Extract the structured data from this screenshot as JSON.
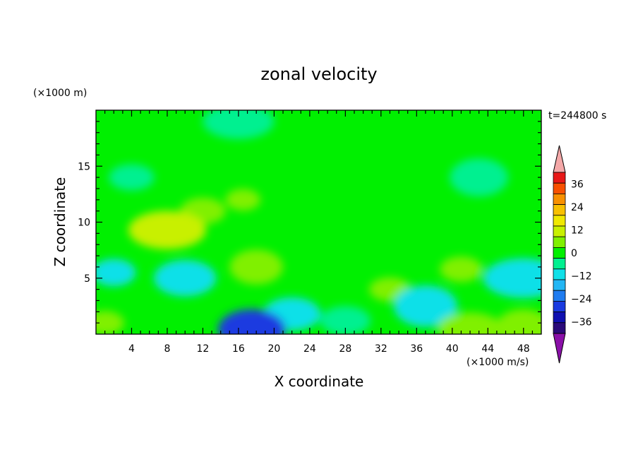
{
  "chart_data": {
    "type": "heatmap",
    "title": "zonal velocity",
    "xlabel": "X coordinate",
    "ylabel": "Z coordinate",
    "x_unit_note": "(×1000 m/s)",
    "y_unit_note": "(×1000 m)",
    "time_label": "t=244800 s",
    "xlim": [
      0,
      50
    ],
    "ylim": [
      0,
      20
    ],
    "x_ticks": [
      "4",
      "8",
      "12",
      "16",
      "20",
      "24",
      "28",
      "32",
      "36",
      "40",
      "44",
      "48"
    ],
    "y_ticks": [
      "5",
      "10",
      "15"
    ],
    "colorbar": {
      "levels": [
        -42,
        -36,
        -30,
        -24,
        -18,
        -12,
        -6,
        0,
        6,
        12,
        18,
        24,
        30,
        36,
        42
      ],
      "tick_labels": [
        "36",
        "24",
        "12",
        "0",
        "−12",
        "−24",
        "−36"
      ],
      "colors": [
        "#2a0a7a",
        "#1010b0",
        "#1a3ae0",
        "#1f7cf0",
        "#22b6f4",
        "#10e0e8",
        "#00f090",
        "#00f000",
        "#80f000",
        "#c8f000",
        "#f0e800",
        "#f8c000",
        "#f89000",
        "#f85000",
        "#e81818"
      ],
      "over_color": "#f4a8a8",
      "under_color": "#8a10a8"
    },
    "field": {
      "background_value": 3,
      "features": [
        {
          "x": 16,
          "y": 19,
          "value": -6
        },
        {
          "x": 43,
          "y": 14,
          "value": -6
        },
        {
          "x": 4,
          "y": 14,
          "value": -6
        },
        {
          "x": 25,
          "y": 15,
          "value": 3
        },
        {
          "x": 12,
          "y": 11,
          "value": 8
        },
        {
          "x": 16.5,
          "y": 12,
          "value": 8
        },
        {
          "x": 8,
          "y": 9.3,
          "value": 14
        },
        {
          "x": 18,
          "y": 6,
          "value": 10
        },
        {
          "x": 33,
          "y": 4,
          "value": 10
        },
        {
          "x": 41,
          "y": 5.8,
          "value": 9
        },
        {
          "x": 10,
          "y": 5,
          "value": -9
        },
        {
          "x": 2,
          "y": 5.5,
          "value": -7
        },
        {
          "x": 48,
          "y": 5,
          "value": -9
        },
        {
          "x": 37,
          "y": 2.5,
          "value": -8
        },
        {
          "x": 22,
          "y": 1.8,
          "value": -12
        },
        {
          "x": 17.5,
          "y": 0.4,
          "value": -30
        },
        {
          "x": 28,
          "y": 1.2,
          "value": -4
        },
        {
          "x": 1,
          "y": 1,
          "value": 10
        },
        {
          "x": 42,
          "y": 0.5,
          "value": 10
        },
        {
          "x": 48,
          "y": 0.6,
          "value": 11
        }
      ]
    }
  }
}
